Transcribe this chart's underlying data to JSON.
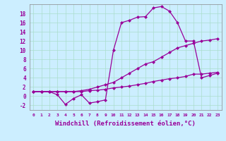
{
  "background_color": "#cceeff",
  "grid_color": "#aaddcc",
  "line_color": "#990099",
  "marker": "D",
  "markersize": 2.5,
  "linewidth": 0.9,
  "xlabel": "Windchill (Refroidissement éolien,°C)",
  "xlabel_fontsize": 6.5,
  "xlim": [
    -0.5,
    23.5
  ],
  "ylim": [
    -3,
    20
  ],
  "xtick_labels": [
    "0",
    "1",
    "2",
    "3",
    "4",
    "5",
    "6",
    "7",
    "8",
    "9",
    "10",
    "11",
    "12",
    "13",
    "14",
    "15",
    "16",
    "17",
    "18",
    "19",
    "20",
    "21",
    "22",
    "23"
  ],
  "ytick_values": [
    -2,
    0,
    2,
    4,
    6,
    8,
    10,
    12,
    14,
    16,
    18
  ],
  "series": [
    {
      "x": [
        0,
        1,
        2,
        3,
        4,
        5,
        6,
        7,
        8,
        9,
        10,
        11,
        12,
        13,
        14,
        15,
        16,
        17,
        18,
        19,
        20,
        21,
        22,
        23
      ],
      "y": [
        1.0,
        1.0,
        1.0,
        0.3,
        -1.8,
        -0.5,
        0.3,
        -1.5,
        -1.2,
        -0.8,
        10.0,
        16.0,
        16.5,
        17.2,
        17.3,
        19.2,
        19.5,
        18.5,
        16.0,
        12.0,
        12.0,
        4.0,
        4.5,
        5.0
      ]
    },
    {
      "x": [
        0,
        1,
        2,
        3,
        4,
        5,
        6,
        7,
        8,
        9,
        10,
        11,
        12,
        13,
        14,
        15,
        16,
        17,
        18,
        19,
        20,
        21,
        22,
        23
      ],
      "y": [
        1.0,
        1.0,
        1.0,
        1.0,
        1.0,
        1.0,
        1.2,
        1.5,
        2.0,
        2.5,
        3.0,
        4.0,
        5.0,
        6.0,
        7.0,
        7.5,
        8.5,
        9.5,
        10.5,
        11.0,
        11.5,
        12.0,
        12.2,
        12.5
      ]
    },
    {
      "x": [
        0,
        1,
        2,
        3,
        4,
        5,
        6,
        7,
        8,
        9,
        10,
        11,
        12,
        13,
        14,
        15,
        16,
        17,
        18,
        19,
        20,
        21,
        22,
        23
      ],
      "y": [
        1.0,
        1.0,
        1.0,
        1.0,
        1.0,
        1.0,
        1.0,
        1.2,
        1.3,
        1.5,
        1.8,
        2.0,
        2.2,
        2.5,
        2.8,
        3.2,
        3.5,
        3.8,
        4.0,
        4.3,
        4.8,
        4.8,
        5.0,
        5.2
      ]
    }
  ]
}
